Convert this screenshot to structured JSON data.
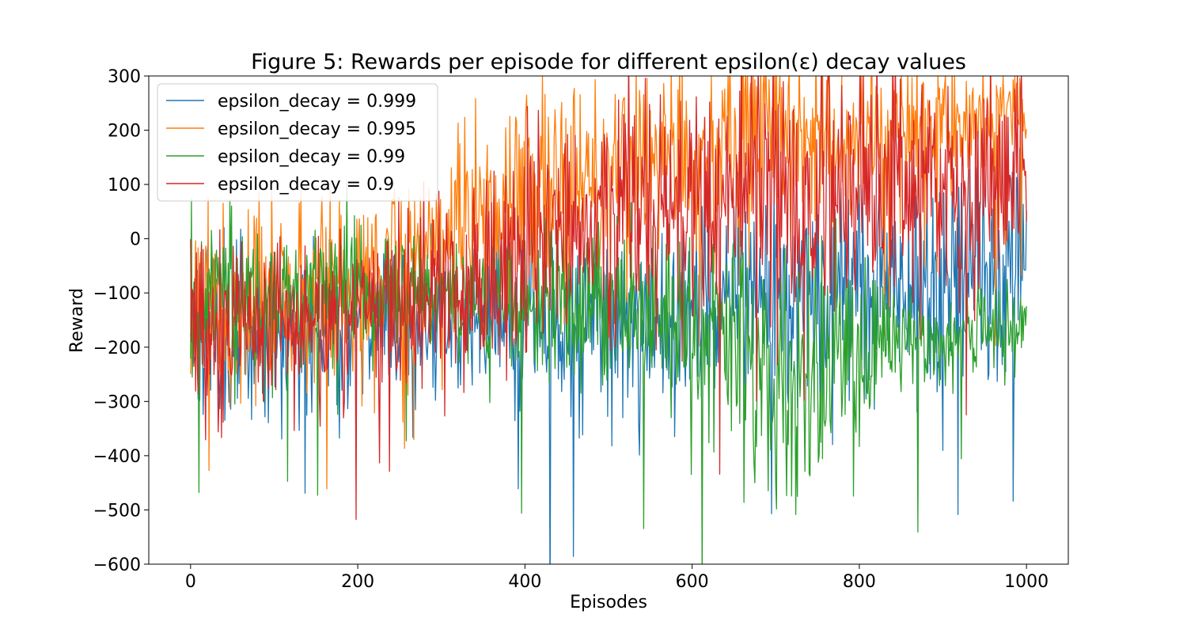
{
  "chart_data": {
    "type": "line",
    "title": "Figure 5: Rewards per episode for different epsilon(ε) decay values",
    "xlabel": "Episodes",
    "ylabel": "Reward",
    "xlim": [
      -50,
      1050
    ],
    "ylim": [
      -600,
      300
    ],
    "x_ticks": [
      0,
      200,
      400,
      600,
      800,
      1000
    ],
    "y_ticks": [
      -600,
      -500,
      -400,
      -300,
      -200,
      -100,
      0,
      100,
      200,
      300
    ],
    "x_tick_labels": [
      "0",
      "200",
      "400",
      "600",
      "800",
      "1000"
    ],
    "y_tick_labels": [
      "−600",
      "−500",
      "−400",
      "−300",
      "−200",
      "−100",
      "0",
      "100",
      "200",
      "300"
    ],
    "grid": false,
    "legend_position": "upper-left",
    "episodes": 1000,
    "series": [
      {
        "name": "epsilon_decay = 0.999",
        "color": "#1f77b4",
        "keypoints": [
          [
            0,
            -150
          ],
          [
            50,
            -180
          ],
          [
            100,
            -160
          ],
          [
            150,
            -170
          ],
          [
            200,
            -160
          ],
          [
            250,
            -150
          ],
          [
            300,
            -140
          ],
          [
            350,
            -150
          ],
          [
            400,
            -140
          ],
          [
            450,
            -150
          ],
          [
            500,
            -140
          ],
          [
            550,
            -150
          ],
          [
            600,
            -120
          ],
          [
            650,
            -100
          ],
          [
            700,
            -110
          ],
          [
            750,
            -100
          ],
          [
            800,
            -90
          ],
          [
            850,
            -80
          ],
          [
            900,
            -70
          ],
          [
            950,
            -50
          ],
          [
            1000,
            -40
          ]
        ],
        "spread": [
          [
            0,
            120
          ],
          [
            100,
            100
          ],
          [
            300,
            90
          ],
          [
            500,
            110
          ],
          [
            700,
            130
          ],
          [
            900,
            140
          ],
          [
            1000,
            140
          ]
        ],
        "seed": 11
      },
      {
        "name": "epsilon_decay = 0.995",
        "color": "#ff7f0e",
        "keypoints": [
          [
            0,
            -150
          ],
          [
            50,
            -130
          ],
          [
            100,
            -110
          ],
          [
            150,
            -100
          ],
          [
            200,
            -80
          ],
          [
            250,
            -50
          ],
          [
            300,
            -10
          ],
          [
            350,
            40
          ],
          [
            400,
            80
          ],
          [
            450,
            110
          ],
          [
            500,
            130
          ],
          [
            550,
            140
          ],
          [
            600,
            150
          ],
          [
            650,
            160
          ],
          [
            700,
            170
          ],
          [
            750,
            180
          ],
          [
            800,
            190
          ],
          [
            850,
            200
          ],
          [
            900,
            210
          ],
          [
            950,
            215
          ],
          [
            1000,
            220
          ]
        ],
        "spread": [
          [
            0,
            120
          ],
          [
            100,
            110
          ],
          [
            300,
            120
          ],
          [
            400,
            130
          ],
          [
            600,
            120
          ],
          [
            800,
            90
          ],
          [
            1000,
            70
          ]
        ],
        "seed": 23
      },
      {
        "name": "epsilon_decay = 0.99",
        "color": "#2ca02c",
        "keypoints": [
          [
            0,
            -130
          ],
          [
            50,
            -120
          ],
          [
            100,
            -110
          ],
          [
            150,
            -100
          ],
          [
            200,
            -100
          ],
          [
            250,
            -110
          ],
          [
            300,
            -110
          ],
          [
            350,
            -110
          ],
          [
            400,
            -110
          ],
          [
            450,
            -110
          ],
          [
            500,
            -120
          ],
          [
            550,
            -130
          ],
          [
            600,
            -150
          ],
          [
            650,
            -200
          ],
          [
            700,
            -250
          ],
          [
            750,
            -250
          ],
          [
            800,
            -230
          ],
          [
            850,
            -190
          ],
          [
            900,
            -180
          ],
          [
            950,
            -170
          ],
          [
            1000,
            -170
          ]
        ],
        "spread": [
          [
            0,
            110
          ],
          [
            200,
            90
          ],
          [
            400,
            80
          ],
          [
            500,
            90
          ],
          [
            600,
            130
          ],
          [
            700,
            150
          ],
          [
            800,
            130
          ],
          [
            850,
            70
          ],
          [
            1000,
            40
          ]
        ],
        "seed": 37
      },
      {
        "name": "epsilon_decay = 0.9",
        "color": "#d62728",
        "keypoints": [
          [
            0,
            -160
          ],
          [
            50,
            -170
          ],
          [
            100,
            -160
          ],
          [
            150,
            -150
          ],
          [
            200,
            -140
          ],
          [
            250,
            -120
          ],
          [
            300,
            -100
          ],
          [
            350,
            -60
          ],
          [
            400,
            0
          ],
          [
            450,
            30
          ],
          [
            500,
            50
          ],
          [
            550,
            60
          ],
          [
            600,
            60
          ],
          [
            650,
            70
          ],
          [
            700,
            70
          ],
          [
            750,
            80
          ],
          [
            800,
            90
          ],
          [
            850,
            100
          ],
          [
            900,
            110
          ],
          [
            950,
            120
          ],
          [
            1000,
            130
          ]
        ],
        "spread": [
          [
            0,
            150
          ],
          [
            60,
            110
          ],
          [
            200,
            100
          ],
          [
            400,
            140
          ],
          [
            600,
            150
          ],
          [
            800,
            140
          ],
          [
            1000,
            120
          ]
        ],
        "seed": 53
      }
    ]
  }
}
